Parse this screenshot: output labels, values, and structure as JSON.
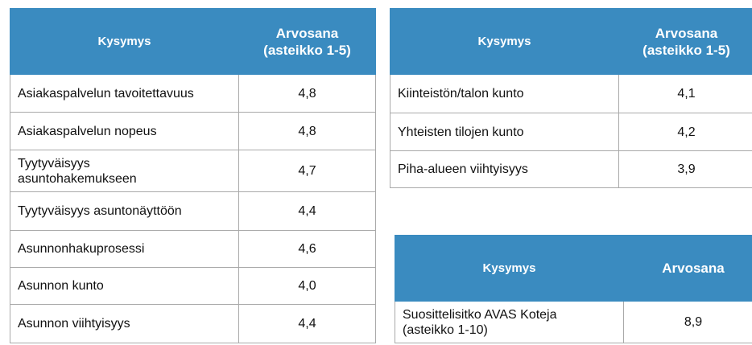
{
  "tables": [
    {
      "headers": [
        "Kysymys",
        "Arvosana\n(asteikko 1-5)"
      ],
      "rows": [
        [
          "Asiakaspalvelun tavoitettavuus",
          "4,8"
        ],
        [
          "Asiakaspalvelun nopeus",
          "4,8"
        ],
        [
          "Tyytyväisyys\nasuntohakemukseen",
          "4,7"
        ],
        [
          "Tyytyväisyys asuntonäyttöön",
          "4,4"
        ],
        [
          "Asunnonhakuprosessi",
          "4,6"
        ],
        [
          "Asunnon kunto",
          "4,0"
        ],
        [
          "Asunnon viihtyisyys",
          "4,4"
        ]
      ]
    },
    {
      "headers": [
        "Kysymys",
        "Arvosana\n(asteikko 1-5)"
      ],
      "rows": [
        [
          "Kiinteistön/talon kunto",
          "4,1"
        ],
        [
          "Yhteisten tilojen kunto",
          "4,2"
        ],
        [
          "Piha-alueen viihtyisyys",
          "3,9"
        ]
      ]
    },
    {
      "headers": [
        "Kysymys",
        "Arvosana"
      ],
      "rows": [
        [
          "Suosittelisitko  AVAS Koteja\n(asteikko 1-10)",
          "8,9"
        ]
      ]
    }
  ]
}
